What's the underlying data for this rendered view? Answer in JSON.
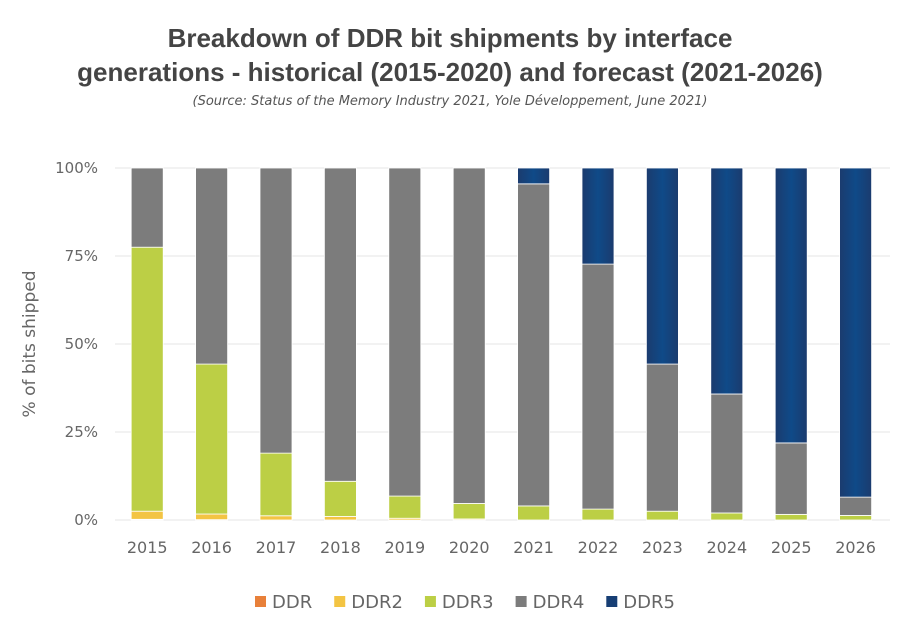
{
  "chart_data": {
    "type": "bar",
    "stacked": true,
    "title_line1": "Breakdown of DDR bit shipments by interface",
    "title_line2": "generations - historical (2015-2020) and forecast (2021-2026)",
    "subtitle": "(Source: Status of the Memory Industry 2021, Yole Développement, June 2021)",
    "ylabel": "% of bits shipped",
    "xlabel": "",
    "ylim": [
      0,
      100
    ],
    "yticks": [
      "0%",
      "25%",
      "50%",
      "75%",
      "100%"
    ],
    "grid": true,
    "legend_position": "bottom",
    "categories": [
      "2015",
      "2016",
      "2017",
      "2018",
      "2019",
      "2020",
      "2021",
      "2022",
      "2023",
      "2024",
      "2025",
      "2026"
    ],
    "series": [
      {
        "name": "DDR",
        "color": "#e8803a",
        "values": [
          0.2,
          0.1,
          0,
          0,
          0,
          0,
          0,
          0,
          0,
          0,
          0,
          0
        ]
      },
      {
        "name": "DDR2",
        "color": "#f3c443",
        "values": [
          2.3,
          1.6,
          1.2,
          1.0,
          0.5,
          0.3,
          0,
          0,
          0,
          0,
          0,
          0
        ]
      },
      {
        "name": "DDR3",
        "color": "#bccf45",
        "values": [
          75.0,
          42.6,
          17.8,
          10.0,
          6.3,
          4.4,
          4.0,
          3.1,
          2.5,
          2.0,
          1.6,
          1.3
        ]
      },
      {
        "name": "DDR4",
        "color": "#7c7c7c",
        "values": [
          22.5,
          55.7,
          81.0,
          89.0,
          93.2,
          95.3,
          91.5,
          69.6,
          41.8,
          33.8,
          20.3,
          5.2
        ]
      },
      {
        "name": "DDR5",
        "color": "#173e74",
        "values": [
          0,
          0,
          0,
          0,
          0,
          0,
          4.5,
          27.3,
          55.7,
          64.2,
          78.1,
          93.5
        ]
      }
    ]
  }
}
